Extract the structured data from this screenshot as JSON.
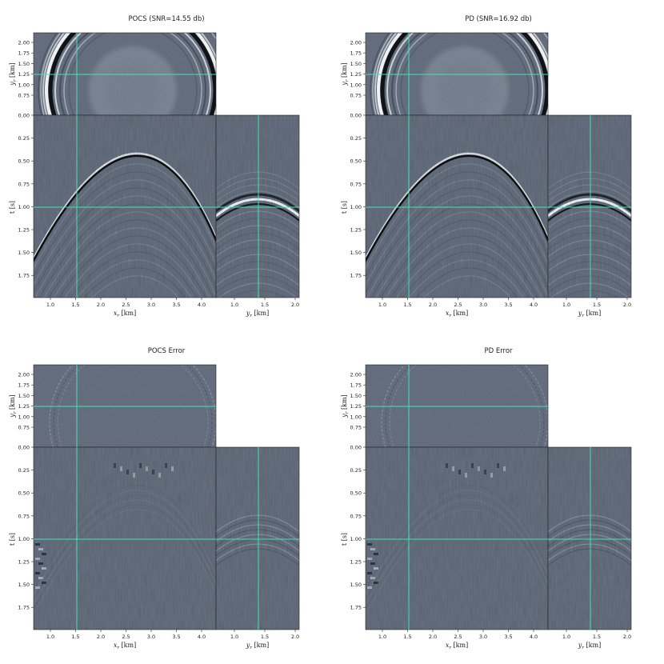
{
  "panels": [
    {
      "id": "pocs",
      "title": "POCS (SNR=14.55 db)",
      "kind": "recon"
    },
    {
      "id": "pd",
      "title": "PD (SNR=16.92 db)",
      "kind": "recon"
    },
    {
      "id": "pocs_err",
      "title": "POCS Error",
      "kind": "error"
    },
    {
      "id": "pd_err",
      "title": "PD Error",
      "kind": "error"
    }
  ],
  "axes": {
    "xr_label": "x",
    "xr_sub": "r",
    "xr_unit": " [km]",
    "yr_label": "y",
    "yr_sub": "r",
    "yr_unit": " [km]",
    "t_label": "t [s]",
    "xr_ticks": [
      "1.0",
      "1.5",
      "2.0",
      "2.5",
      "3.0",
      "3.5",
      "4.0"
    ],
    "yr_ticks_h": [
      "1.0",
      "1.5",
      "2.0"
    ],
    "yr_ticks_v": [
      "0.75",
      "1.00",
      "1.25",
      "1.50",
      "1.75",
      "2.00"
    ],
    "t_ticks": [
      "0.00",
      "0.25",
      "0.50",
      "0.75",
      "1.00",
      "1.25",
      "1.50",
      "1.75"
    ]
  },
  "colors": {
    "background": "#6a7485",
    "crosshair": "#3ee6b0"
  }
}
